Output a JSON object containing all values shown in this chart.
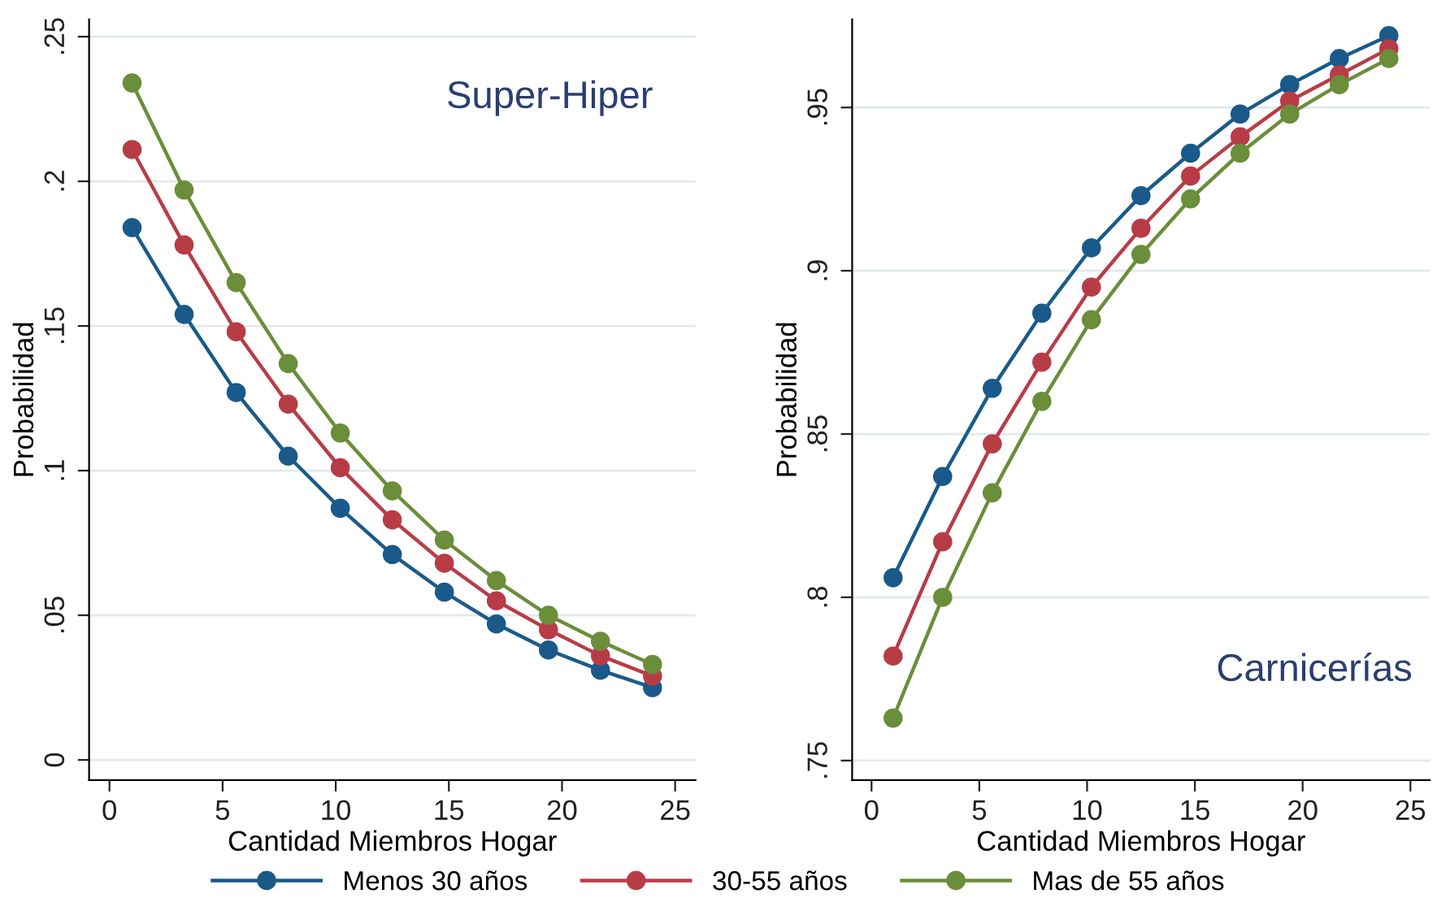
{
  "chart_data": [
    {
      "type": "line",
      "xlabel": "Cantidad Miembros Hogar",
      "ylabel": "Probabilidad",
      "annotations": [
        "Super-Hiper"
      ],
      "grid": "y",
      "legend": "bottom",
      "marker": "circle",
      "line_style": "solid",
      "x": [
        1,
        3.3,
        5.6,
        7.9,
        10.2,
        12.5,
        14.8,
        17.1,
        19.4,
        21.7,
        24
      ],
      "xlim": [
        -0.9,
        25.9
      ],
      "xticks": [
        0,
        5,
        10,
        15,
        20,
        25
      ],
      "ylim": [
        -0.007,
        0.256
      ],
      "yticks": [
        {
          "value": 0,
          "label": "0"
        },
        {
          "value": 0.05,
          "label": ".05"
        },
        {
          "value": 0.1,
          "label": ".1"
        },
        {
          "value": 0.15,
          "label": ".15"
        },
        {
          "value": 0.2,
          "label": ".2"
        },
        {
          "value": 0.25,
          "label": ".25"
        }
      ],
      "series": [
        {
          "name": "Menos 30 años",
          "color": "#1a5a8a",
          "values": [
            0.184,
            0.154,
            0.127,
            0.105,
            0.087,
            0.071,
            0.058,
            0.047,
            0.038,
            0.031,
            0.025
          ]
        },
        {
          "name": "30-55 años",
          "color": "#b83c46",
          "values": [
            0.211,
            0.178,
            0.148,
            0.123,
            0.101,
            0.083,
            0.068,
            0.055,
            0.045,
            0.036,
            0.029
          ]
        },
        {
          "name": "Mas de 55 años",
          "color": "#6a8e3a",
          "values": [
            0.234,
            0.197,
            0.165,
            0.137,
            0.113,
            0.093,
            0.076,
            0.062,
            0.05,
            0.041,
            0.033
          ]
        }
      ]
    },
    {
      "type": "line",
      "xlabel": "Cantidad Miembros Hogar",
      "ylabel": "Probabilidad",
      "annotations": [
        "Carnicerías"
      ],
      "grid": "y",
      "marker": "circle",
      "line_style": "solid",
      "x": [
        1,
        3.3,
        5.6,
        7.9,
        10.2,
        12.5,
        14.8,
        17.1,
        19.4,
        21.7,
        24
      ],
      "xlim": [
        -0.9,
        25.9
      ],
      "xticks": [
        0,
        5,
        10,
        15,
        20,
        25
      ],
      "ylim": [
        0.744,
        0.977
      ],
      "yticks": [
        {
          "value": 0.75,
          "label": ".75"
        },
        {
          "value": 0.8,
          "label": ".8"
        },
        {
          "value": 0.85,
          "label": ".85"
        },
        {
          "value": 0.9,
          "label": ".9"
        },
        {
          "value": 0.95,
          "label": ".95"
        }
      ],
      "series": [
        {
          "name": "Menos 30 años",
          "color": "#1a5a8a",
          "values": [
            0.806,
            0.837,
            0.864,
            0.887,
            0.907,
            0.923,
            0.936,
            0.948,
            0.957,
            0.965,
            0.972
          ]
        },
        {
          "name": "30-55 años",
          "color": "#b83c46",
          "values": [
            0.782,
            0.817,
            0.847,
            0.872,
            0.895,
            0.913,
            0.929,
            0.941,
            0.952,
            0.96,
            0.968
          ]
        },
        {
          "name": "Mas de 55 años",
          "color": "#6a8e3a",
          "values": [
            0.763,
            0.8,
            0.832,
            0.86,
            0.885,
            0.905,
            0.922,
            0.936,
            0.948,
            0.957,
            0.965
          ]
        }
      ]
    }
  ]
}
